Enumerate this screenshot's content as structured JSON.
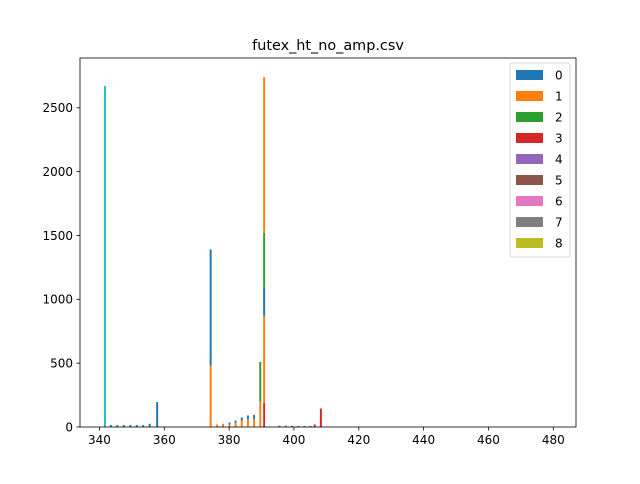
{
  "chart_data": {
    "type": "bar",
    "title": "futex_ht_no_amp.csv",
    "xlabel": "",
    "ylabel": "",
    "xlim": [
      334,
      487
    ],
    "ylim": [
      0,
      2890
    ],
    "xticks": [
      340,
      360,
      380,
      400,
      420,
      440,
      460,
      480
    ],
    "xtick_labels": [
      "340",
      "360",
      "380",
      "400",
      "420",
      "440",
      "460",
      "480"
    ],
    "yticks": [
      0,
      500,
      1000,
      1500,
      2000,
      2500
    ],
    "ytick_labels": [
      "0",
      "500",
      "1000",
      "1500",
      "2000",
      "2500"
    ],
    "bar_width": 0.6,
    "grid": false,
    "legend_position": "top-right",
    "stacked": true,
    "legend": [
      {
        "label": "0",
        "color": "#1f77b4"
      },
      {
        "label": "1",
        "color": "#ff7f0e"
      },
      {
        "label": "2",
        "color": "#2ca02c"
      },
      {
        "label": "3",
        "color": "#d62728"
      },
      {
        "label": "4",
        "color": "#9467bd"
      },
      {
        "label": "5",
        "color": "#8c564b"
      },
      {
        "label": "6",
        "color": "#e377c2"
      },
      {
        "label": "7",
        "color": "#7f7f7f"
      },
      {
        "label": "8",
        "color": "#bcbd22"
      }
    ],
    "bars": [
      {
        "x": 341.7,
        "segments": [
          {
            "color": "#17becf",
            "value": 2670
          }
        ]
      },
      {
        "x": 343.5,
        "segments": [
          {
            "color": "#1f77b4",
            "value": 15
          }
        ]
      },
      {
        "x": 345.5,
        "segments": [
          {
            "color": "#1f77b4",
            "value": 15
          }
        ]
      },
      {
        "x": 347.5,
        "segments": [
          {
            "color": "#1f77b4",
            "value": 15
          }
        ]
      },
      {
        "x": 349.5,
        "segments": [
          {
            "color": "#1f77b4",
            "value": 15
          }
        ]
      },
      {
        "x": 351.5,
        "segments": [
          {
            "color": "#1f77b4",
            "value": 15
          }
        ]
      },
      {
        "x": 353.5,
        "segments": [
          {
            "color": "#1f77b4",
            "value": 15
          }
        ]
      },
      {
        "x": 355.5,
        "segments": [
          {
            "color": "#1f77b4",
            "value": 25
          }
        ]
      },
      {
        "x": 357.8,
        "segments": [
          {
            "color": "#1f77b4",
            "value": 195
          }
        ]
      },
      {
        "x": 374.3,
        "segments": [
          {
            "color": "#ff7f0e",
            "value": 480
          },
          {
            "color": "#1f77b4",
            "value": 910
          }
        ]
      },
      {
        "x": 376.3,
        "segments": [
          {
            "color": "#ff7f0e",
            "value": 20
          }
        ]
      },
      {
        "x": 378.1,
        "segments": [
          {
            "color": "#ff7f0e",
            "value": 25
          }
        ]
      },
      {
        "x": 380.1,
        "segments": [
          {
            "color": "#ff7f0e",
            "value": 20
          },
          {
            "color": "#1f77b4",
            "value": 15
          }
        ]
      },
      {
        "x": 382.0,
        "segments": [
          {
            "color": "#ff7f0e",
            "value": 35
          },
          {
            "color": "#1f77b4",
            "value": 15
          }
        ]
      },
      {
        "x": 383.9,
        "segments": [
          {
            "color": "#ff7f0e",
            "value": 50
          },
          {
            "color": "#1f77b4",
            "value": 25
          }
        ]
      },
      {
        "x": 385.8,
        "segments": [
          {
            "color": "#ff7f0e",
            "value": 60
          },
          {
            "color": "#1f77b4",
            "value": 30
          }
        ]
      },
      {
        "x": 387.7,
        "segments": [
          {
            "color": "#ff7f0e",
            "value": 60
          },
          {
            "color": "#1f77b4",
            "value": 35
          }
        ]
      },
      {
        "x": 389.6,
        "segments": [
          {
            "color": "#ff7f0e",
            "value": 200
          },
          {
            "color": "#2ca02c",
            "value": 310
          }
        ]
      },
      {
        "x": 390.8,
        "segments": [
          {
            "color": "#d62728",
            "value": 190
          },
          {
            "color": "#ff7f0e",
            "value": 680
          },
          {
            "color": "#1f77b4",
            "value": 220
          },
          {
            "color": "#2ca02c",
            "value": 430
          },
          {
            "color": "#ff7f0e",
            "value": 1220
          }
        ]
      },
      {
        "x": 395.5,
        "segments": [
          {
            "color": "#1f77b4",
            "value": 10
          }
        ]
      },
      {
        "x": 397.5,
        "segments": [
          {
            "color": "#1f77b4",
            "value": 10
          }
        ]
      },
      {
        "x": 399.4,
        "segments": [
          {
            "color": "#1f77b4",
            "value": 10
          }
        ]
      },
      {
        "x": 401.3,
        "segments": [
          {
            "color": "#1f77b4",
            "value": 8
          }
        ]
      },
      {
        "x": 403.2,
        "segments": [
          {
            "color": "#1f77b4",
            "value": 8
          }
        ]
      },
      {
        "x": 405.1,
        "segments": [
          {
            "color": "#1f77b4",
            "value": 8
          }
        ]
      },
      {
        "x": 406.4,
        "segments": [
          {
            "color": "#d62728",
            "value": 20
          }
        ]
      },
      {
        "x": 408.3,
        "segments": [
          {
            "color": "#d62728",
            "value": 145
          }
        ]
      }
    ]
  }
}
